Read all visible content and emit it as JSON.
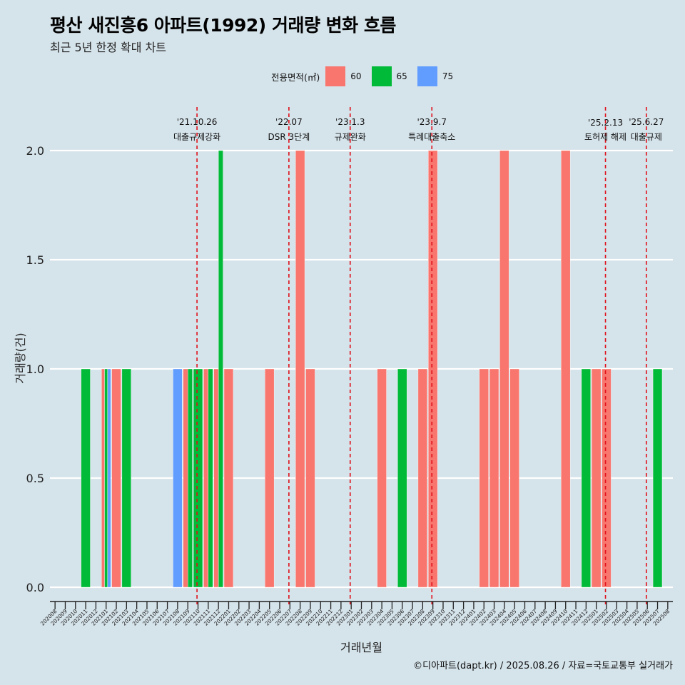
{
  "header": {
    "title": "평산 새진흥6 아파트(1992) 거래량 변화 흐름",
    "subtitle": "최근 5년 한정 확대 차트"
  },
  "legend": {
    "title": "전용면적(㎡)",
    "items": [
      {
        "label": "60",
        "color": "#f8766d"
      },
      {
        "label": "65",
        "color": "#00ba38"
      },
      {
        "label": "75",
        "color": "#619cff"
      }
    ]
  },
  "caption": "©디아파트(dapt.kr) / 2025.08.26 / 자료=국토교통부 실거래가",
  "chart_data": {
    "type": "bar",
    "xlabel": "거래년월",
    "ylabel": "거래량(건)",
    "ylim": [
      0,
      2.2
    ],
    "yticks": [
      "0.0",
      "0.5",
      "1.0",
      "1.5",
      "2.0"
    ],
    "grid": "horizontal",
    "legend_position": "top",
    "categories": [
      "202008",
      "202009",
      "202010",
      "202011",
      "202012",
      "202101",
      "202102",
      "202103",
      "202104",
      "202105",
      "202106",
      "202107",
      "202108",
      "202109",
      "202110",
      "202111",
      "202112",
      "202201",
      "202202",
      "202203",
      "202204",
      "202205",
      "202206",
      "202207",
      "202208",
      "202209",
      "202210",
      "202211",
      "202212",
      "202301",
      "202302",
      "202303",
      "202304",
      "202305",
      "202306",
      "202307",
      "202308",
      "202309",
      "202310",
      "202311",
      "202312",
      "202401",
      "202402",
      "202403",
      "202404",
      "202405",
      "202406",
      "202407",
      "202408",
      "202409",
      "202410",
      "202411",
      "202412",
      "202501",
      "202502",
      "202503",
      "202504",
      "202505",
      "202506",
      "202507",
      "202508"
    ],
    "series": [
      {
        "name": "60",
        "color": "#f8766d",
        "values": [
          0,
          0,
          0,
          0,
          0,
          1,
          1,
          0,
          0,
          0,
          0,
          0,
          0,
          1,
          0,
          1,
          1,
          1,
          0,
          0,
          0,
          1,
          0,
          0,
          2,
          1,
          0,
          0,
          0,
          0,
          0,
          0,
          1,
          0,
          0,
          0,
          1,
          2,
          0,
          0,
          0,
          0,
          1,
          1,
          2,
          1,
          0,
          0,
          0,
          0,
          2,
          0,
          0,
          1,
          1,
          0,
          0,
          0,
          0,
          0,
          0
        ]
      },
      {
        "name": "65",
        "color": "#00ba38",
        "values": [
          0,
          0,
          0,
          1,
          0,
          1,
          0,
          1,
          0,
          0,
          0,
          0,
          0,
          1,
          1,
          1,
          2,
          0,
          0,
          0,
          0,
          0,
          0,
          0,
          0,
          0,
          0,
          0,
          0,
          0,
          0,
          0,
          0,
          0,
          1,
          0,
          0,
          0,
          0,
          0,
          0,
          0,
          0,
          0,
          0,
          0,
          0,
          0,
          0,
          0,
          0,
          0,
          1,
          0,
          0,
          0,
          0,
          0,
          0,
          1,
          0
        ]
      },
      {
        "name": "75",
        "color": "#619cff",
        "values": [
          0,
          0,
          0,
          0,
          0,
          1,
          0,
          0,
          0,
          0,
          0,
          0,
          1,
          0,
          0,
          0,
          0,
          0,
          0,
          0,
          0,
          0,
          0,
          0,
          0,
          0,
          0,
          0,
          0,
          0,
          0,
          0,
          0,
          0,
          0,
          0,
          0,
          0,
          0,
          0,
          0,
          0,
          0,
          0,
          0,
          0,
          0,
          0,
          0,
          0,
          0,
          0,
          0,
          0,
          0,
          0,
          0,
          0,
          0,
          0,
          0
        ]
      }
    ],
    "annotations": [
      {
        "date": "'21.10.26",
        "label": "대출규제강화",
        "at": 14.4
      },
      {
        "date": "'22.07",
        "label": "DSR 3단계",
        "at": 23.4
      },
      {
        "date": "'23.1.3",
        "label": "규제완화",
        "at": 29.4
      },
      {
        "date": "'23.9.7",
        "label": "특례대출축소",
        "at": 37.4
      },
      {
        "date": "'25.2.13",
        "label": "토허제 해제",
        "at": 54.4
      },
      {
        "date": "'25.6.27",
        "label": "대출규제",
        "at": 58.4
      }
    ]
  }
}
